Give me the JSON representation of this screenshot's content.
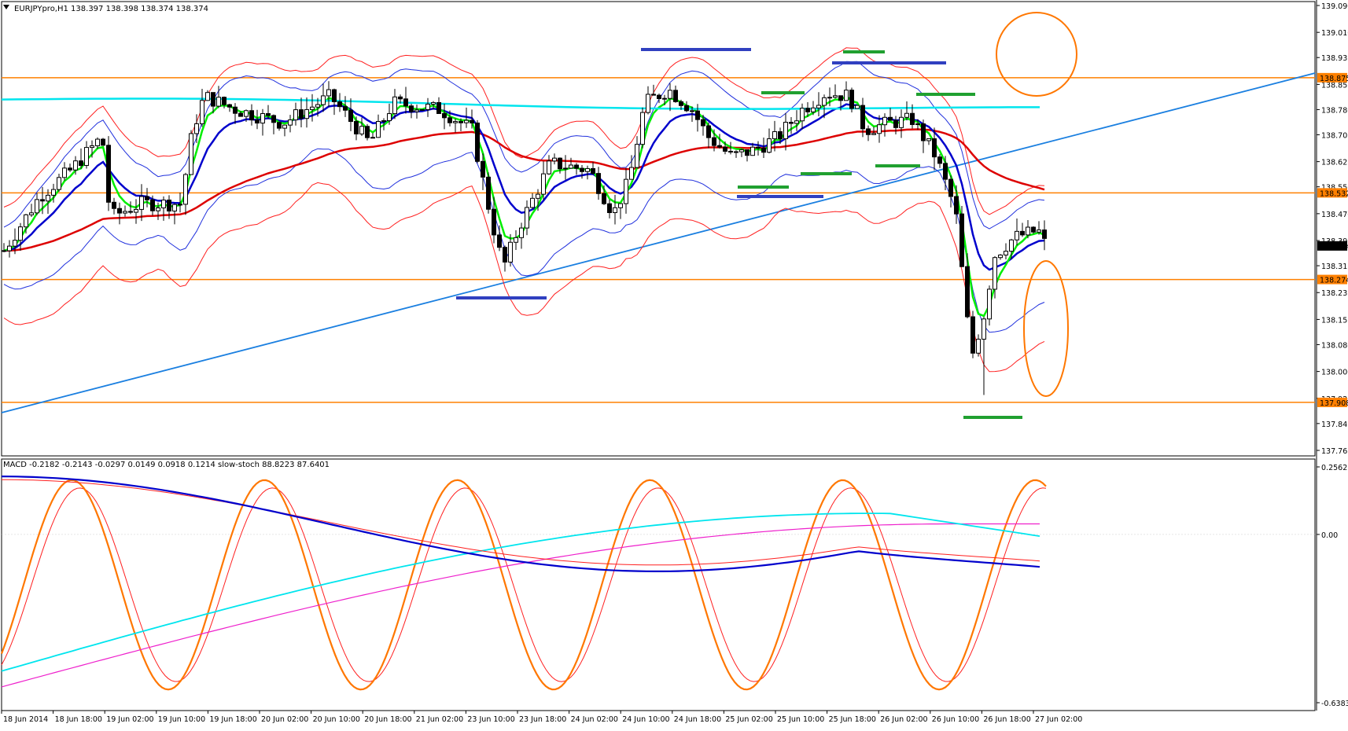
{
  "header": {
    "main_info": "EURJPYpro,H1  138.397 138.398 138.374 138.374",
    "indicator_info": "MACD -0.2182 -0.2143 -0.0297 0.0149 0.0918 0.1214  slow-stoch 88.8223 87.6401"
  },
  "price_axis": {
    "ticks": [
      "139.090",
      "139.010",
      "138.935",
      "138.855",
      "138.780",
      "138.705",
      "138.625",
      "138.550",
      "138.470",
      "138.390",
      "138.315",
      "138.235",
      "138.155",
      "138.080",
      "138.000",
      "137.920",
      "137.845",
      "137.765"
    ],
    "min": 137.765,
    "max": 139.09
  },
  "price_tags": [
    {
      "text": "138.875",
      "value": 138.875,
      "color": "#ff8000"
    },
    {
      "text": "138.532",
      "value": 138.532,
      "color": "#ff8000"
    },
    {
      "text": "138.374",
      "value": 138.374,
      "color": "#000000"
    },
    {
      "text": "138.274",
      "value": 138.274,
      "color": "#ff8000"
    },
    {
      "text": "137.908",
      "value": 137.908,
      "color": "#ff8000"
    }
  ],
  "indicator_axis": {
    "ticks": [
      "0.2562",
      "0.00",
      "-0.6383"
    ],
    "min": -0.6383,
    "max": 0.2562
  },
  "time_axis": [
    "18 Jun 2014",
    "18 Jun 18:00",
    "19 Jun 02:00",
    "19 Jun 10:00",
    "19 Jun 18:00",
    "20 Jun 02:00",
    "20 Jun 10:00",
    "20 Jun 18:00",
    "21 Jun 02:00",
    "23 Jun 10:00",
    "23 Jun 18:00",
    "24 Jun 02:00",
    "24 Jun 10:00",
    "24 Jun 18:00",
    "25 Jun 02:00",
    "25 Jun 10:00",
    "25 Jun 18:00",
    "26 Jun 02:00",
    "26 Jun 10:00",
    "26 Jun 18:00",
    "27 Jun 02:00"
  ],
  "chart_data": {
    "type": "candlestick",
    "title": "EURJPYpro,H1",
    "horizontal_levels": [
      138.875,
      138.532,
      138.274,
      137.908
    ],
    "last_price": 138.374,
    "price_range": [
      137.765,
      139.09
    ],
    "macd_range": [
      -0.6383,
      0.2562
    ],
    "colors": {
      "ema_fast": "#00ee00",
      "ema_mid": "#0000cc",
      "ema_slow": "#dd0000",
      "ema_long": "#00e5ee",
      "bollinger_outer": "#ff2020",
      "bollinger_inner": "#2030dd",
      "trendline": "#1a7fe0",
      "levels": "#ff8000",
      "stoch": "#ff7700",
      "macd_main": "#0000cc",
      "macd_signal": "#ff2020",
      "macd_cyan": "#00e5ee",
      "macd_magenta": "#ee20cc",
      "marker_blue": "#3040c0",
      "marker_green": "#20a030"
    }
  }
}
